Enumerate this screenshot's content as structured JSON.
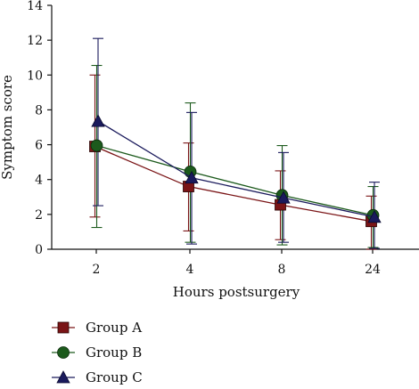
{
  "chart_data": {
    "type": "line",
    "title": "",
    "xlabel": "Hours postsurgery",
    "ylabel": "Symptom score",
    "categories": [
      "2",
      "4",
      "8",
      "24"
    ],
    "ylim": [
      0,
      14
    ],
    "yticks": [
      0,
      2,
      4,
      6,
      8,
      10,
      12,
      14
    ],
    "grid": false,
    "legend_position": "bottom-left",
    "series": [
      {
        "name": "Group A",
        "color": "#7a1416",
        "marker": "square",
        "values": [
          5.9,
          3.6,
          2.55,
          1.6
        ],
        "error_low": [
          1.85,
          1.05,
          0.55,
          0.0
        ],
        "error_high": [
          10.0,
          6.1,
          4.5,
          3.05
        ]
      },
      {
        "name": "Group B",
        "color": "#1c5a1c",
        "marker": "circle",
        "values": [
          5.95,
          4.45,
          3.1,
          1.95
        ],
        "error_low": [
          1.25,
          0.4,
          0.25,
          0.1
        ],
        "error_high": [
          10.55,
          8.4,
          5.95,
          3.6
        ]
      },
      {
        "name": "Group C",
        "color": "#1a1a5c",
        "marker": "triangle",
        "values": [
          7.35,
          4.1,
          2.95,
          1.85
        ],
        "error_low": [
          2.5,
          0.3,
          0.4,
          0.05
        ],
        "error_high": [
          12.1,
          7.85,
          5.55,
          3.85
        ]
      }
    ]
  }
}
